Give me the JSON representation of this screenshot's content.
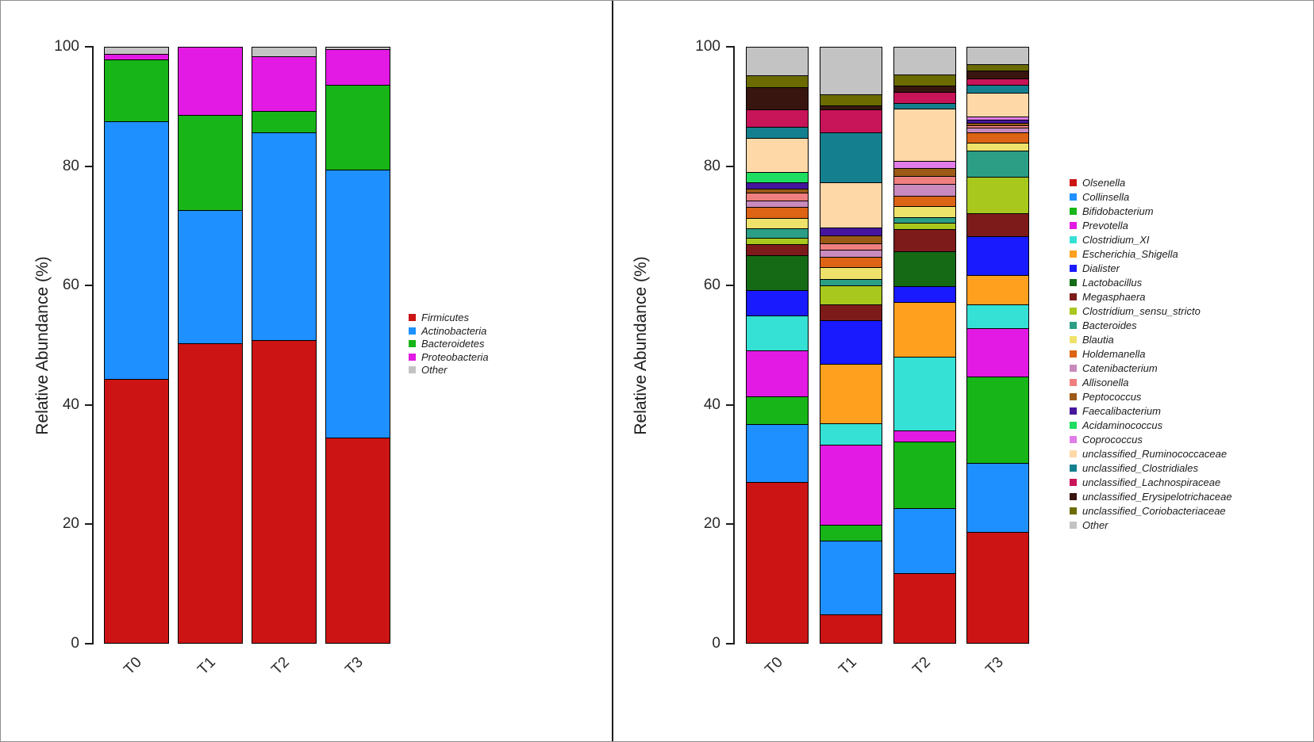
{
  "figure": {
    "background": "#ffffff",
    "outer_border_color": "#8f8f8f",
    "divider_color": "#1c1c1c",
    "text_color": "#1c1c1c"
  },
  "chart_data": [
    {
      "type": "bar",
      "stacked": true,
      "title": "",
      "xlabel": "",
      "ylabel": "Relative Abundance (%)",
      "ylim": [
        0,
        100
      ],
      "yticks": [
        0,
        20,
        40,
        60,
        80,
        100
      ],
      "grid": false,
      "legend_position": "right",
      "categories": [
        "T0",
        "T1",
        "T2",
        "T3"
      ],
      "series": [
        {
          "name": "Firmicutes",
          "color": "#CC1414",
          "values": [
            44.3,
            50.3,
            50.8,
            34.5
          ]
        },
        {
          "name": "Actinobacteria",
          "color": "#1E90FF",
          "values": [
            43.3,
            22.4,
            35.0,
            45.0
          ]
        },
        {
          "name": "Bacteroidetes",
          "color": "#17B517",
          "values": [
            10.4,
            16.0,
            3.6,
            14.3
          ]
        },
        {
          "name": "Proteobacteria",
          "color": "#E31AE3",
          "values": [
            0.9,
            11.3,
            9.2,
            5.9
          ]
        },
        {
          "name": "Other",
          "color": "#C3C3C3",
          "values": [
            1.1,
            0,
            1.4,
            0.3
          ]
        }
      ]
    },
    {
      "type": "bar",
      "stacked": true,
      "title": "",
      "xlabel": "",
      "ylabel": "Relative Abundance (%)",
      "ylim": [
        0,
        100
      ],
      "yticks": [
        0,
        20,
        40,
        60,
        80,
        100
      ],
      "grid": false,
      "legend_position": "right",
      "categories": [
        "T0",
        "T1",
        "T2",
        "T3"
      ],
      "series": [
        {
          "name": "Olsenella",
          "color": "#CC1414",
          "values": [
            27.0,
            4.8,
            11.7,
            18.6
          ]
        },
        {
          "name": "Collinsella",
          "color": "#1E90FF",
          "values": [
            9.7,
            12.3,
            10.9,
            11.6
          ]
        },
        {
          "name": "Bifidobacterium",
          "color": "#17B517",
          "values": [
            4.7,
            2.7,
            11.2,
            14.5
          ]
        },
        {
          "name": "Prevotella",
          "color": "#E31AE3",
          "values": [
            7.7,
            13.5,
            1.8,
            8.1
          ]
        },
        {
          "name": "Clostridium_XI",
          "color": "#35E0D4",
          "values": [
            5.9,
            3.5,
            12.5,
            4.0
          ]
        },
        {
          "name": "Escherichia_Shigella",
          "color": "#FFA01E",
          "values": [
            0,
            10.0,
            9.1,
            4.9
          ]
        },
        {
          "name": "Dialister",
          "color": "#1A1AFF",
          "values": [
            4.2,
            7.4,
            2.7,
            6.6
          ]
        },
        {
          "name": "Lactobacillus",
          "color": "#156B15",
          "values": [
            5.9,
            0,
            5.8,
            0
          ]
        },
        {
          "name": "Megasphaera",
          "color": "#7D1B1B",
          "values": [
            1.9,
            2.7,
            3.8,
            3.8
          ]
        },
        {
          "name": "Clostridium_sensu_stricto",
          "color": "#A8C81E",
          "values": [
            1.0,
            3.1,
            1.1,
            6.2
          ]
        },
        {
          "name": "Bacteroides",
          "color": "#2B9E85",
          "values": [
            1.6,
            1.1,
            0.9,
            4.4
          ]
        },
        {
          "name": "Blautia",
          "color": "#EFE26B",
          "values": [
            1.8,
            2.0,
            1.8,
            1.3
          ]
        },
        {
          "name": "Holdemanella",
          "color": "#DC6414",
          "values": [
            1.8,
            1.8,
            1.8,
            1.7
          ]
        },
        {
          "name": "Catenibacterium",
          "color": "#C98ABD",
          "values": [
            1.1,
            1.1,
            2.0,
            0.8
          ]
        },
        {
          "name": "Allisonella",
          "color": "#F08080",
          "values": [
            1.3,
            1.1,
            1.3,
            0.4
          ]
        },
        {
          "name": "Peptococcus",
          "color": "#9C5A17",
          "values": [
            0.7,
            1.4,
            1.3,
            0.4
          ]
        },
        {
          "name": "Faecalibacterium",
          "color": "#45159E",
          "values": [
            1.0,
            1.3,
            0,
            0.6
          ]
        },
        {
          "name": "Acidaminococcus",
          "color": "#1EDD60",
          "values": [
            1.8,
            0,
            0,
            0
          ]
        },
        {
          "name": "Coprococcus",
          "color": "#E07DE8",
          "values": [
            0,
            0,
            1.3,
            0.5
          ]
        },
        {
          "name": "unclassified_Ruminococcaceae",
          "color": "#FFD8A8",
          "values": [
            5.7,
            7.5,
            8.8,
            4.0
          ]
        },
        {
          "name": "unclassified_Clostridiales",
          "color": "#14808F",
          "values": [
            1.9,
            8.4,
            0.9,
            1.3
          ]
        },
        {
          "name": "unclassified_Lachnospiraceae",
          "color": "#C81458",
          "values": [
            2.9,
            3.9,
            1.8,
            1.1
          ]
        },
        {
          "name": "unclassified_Erysipelotrichaceae",
          "color": "#38160F",
          "values": [
            3.7,
            0.7,
            1.1,
            1.3
          ]
        },
        {
          "name": "unclassified_Coriobacteriaceae",
          "color": "#6B6B00",
          "values": [
            2.1,
            1.9,
            1.9,
            1.1
          ]
        },
        {
          "name": "Other",
          "color": "#C3C3C3",
          "values": [
            4.6,
            7.8,
            4.5,
            2.8
          ]
        }
      ]
    }
  ]
}
